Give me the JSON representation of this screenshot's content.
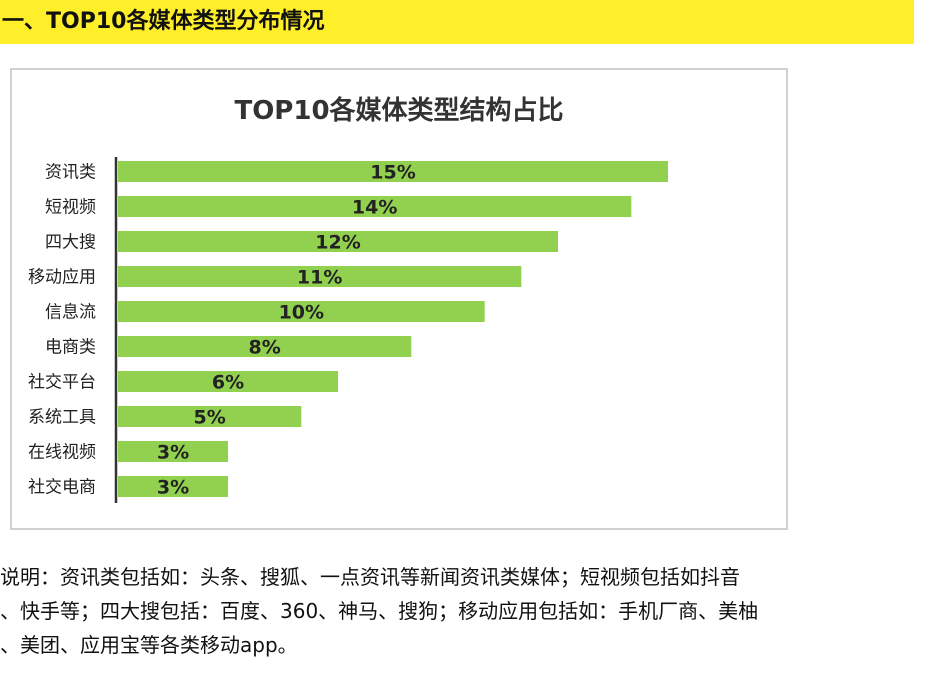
{
  "section": {
    "title": "一、TOP10各媒体类型分布情况"
  },
  "chart_data": {
    "type": "bar",
    "orientation": "horizontal",
    "title": "TOP10各媒体类型结构占比",
    "categories": [
      "资讯类",
      "短视频",
      "四大搜",
      "移动应用",
      "信息流",
      "电商类",
      "社交平台",
      "系统工具",
      "在线视频",
      "社交电商"
    ],
    "values": [
      15,
      14,
      12,
      11,
      10,
      8,
      6,
      5,
      3,
      3
    ],
    "data_labels": [
      "15%",
      "14%",
      "12%",
      "11%",
      "10%",
      "8%",
      "6%",
      "5%",
      "3%",
      "3%"
    ],
    "unit": "%",
    "xlim": [
      0,
      15
    ],
    "xlabel": "",
    "ylabel": "",
    "grid": false,
    "legend": "none",
    "bar_color": "#92d050",
    "axis_color": "#333333"
  },
  "note": {
    "lines": [
      "说明：资讯类包括如：头条、搜狐、一点资讯等新闻资讯类媒体；短视频包括如抖音",
      "、快手等；四大搜包括：百度、360、神马、搜狗；移动应用包括如：手机厂商、美柚",
      "、美团、应用宝等各类移动app。"
    ]
  },
  "colors": {
    "highlight": "#ffee2a",
    "bar": "#92d050",
    "frame": "#d0d0d0"
  }
}
